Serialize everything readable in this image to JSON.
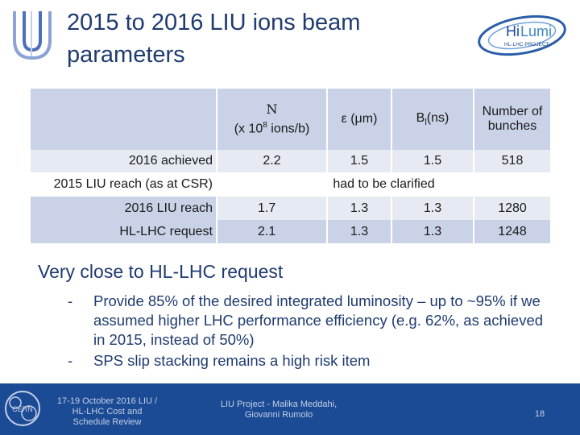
{
  "title": "2015 to 2016 LIU ions beam parameters",
  "logo_text": "HL-LHC PROJECT",
  "table": {
    "header": {
      "n_symbol": "N",
      "n_unit_pre": "(x 10",
      "n_unit_exp": "8",
      "n_unit_post": " ions/b)",
      "eps": "ε (μm)",
      "bl_main": "B",
      "bl_sub": "l",
      "bl_unit": "(ns)",
      "bunches": "Number of bunches"
    },
    "rows": [
      {
        "label": "2016 achieved",
        "n": "2.2",
        "eps": "1.5",
        "bl": "1.5",
        "bunches": "518"
      },
      {
        "label": "2015 LIU reach (as at CSR)",
        "note": "had to be clarified"
      },
      {
        "label": "2016 LIU reach",
        "n": "1.7",
        "eps": "1.3",
        "bl": "1.3",
        "bunches": "1280"
      },
      {
        "label": "HL-LHC request",
        "n": "2.1",
        "eps": "1.3",
        "bl": "1.3",
        "bunches": "1248"
      }
    ]
  },
  "summary": {
    "heading": "Very close to HL-LHC request",
    "bullets": [
      {
        "marker": "-",
        "text": "Provide 85% of the desired integrated luminosity – up to ~95% if we assumed higher LHC performance efficiency (e.g. 62%, as achieved in 2015, instead of 50%)"
      },
      {
        "marker": "-",
        "text": "SPS slip stacking remains a high risk item"
      }
    ]
  },
  "footer": {
    "cern_logo_text": "CERN",
    "event": "17-19 October 2016 LIU / HL-LHC  Cost and Schedule Review",
    "presenters": "LIU Project - Malika Meddahi, Giovanni Rumolo",
    "page": "18"
  },
  "colors": {
    "title": "#1f3b70",
    "table_dark": "#c9d2e7",
    "table_light": "#e6eaf3",
    "footer_bg": "#1b4b94",
    "footer_text": "#c4cfe7"
  }
}
